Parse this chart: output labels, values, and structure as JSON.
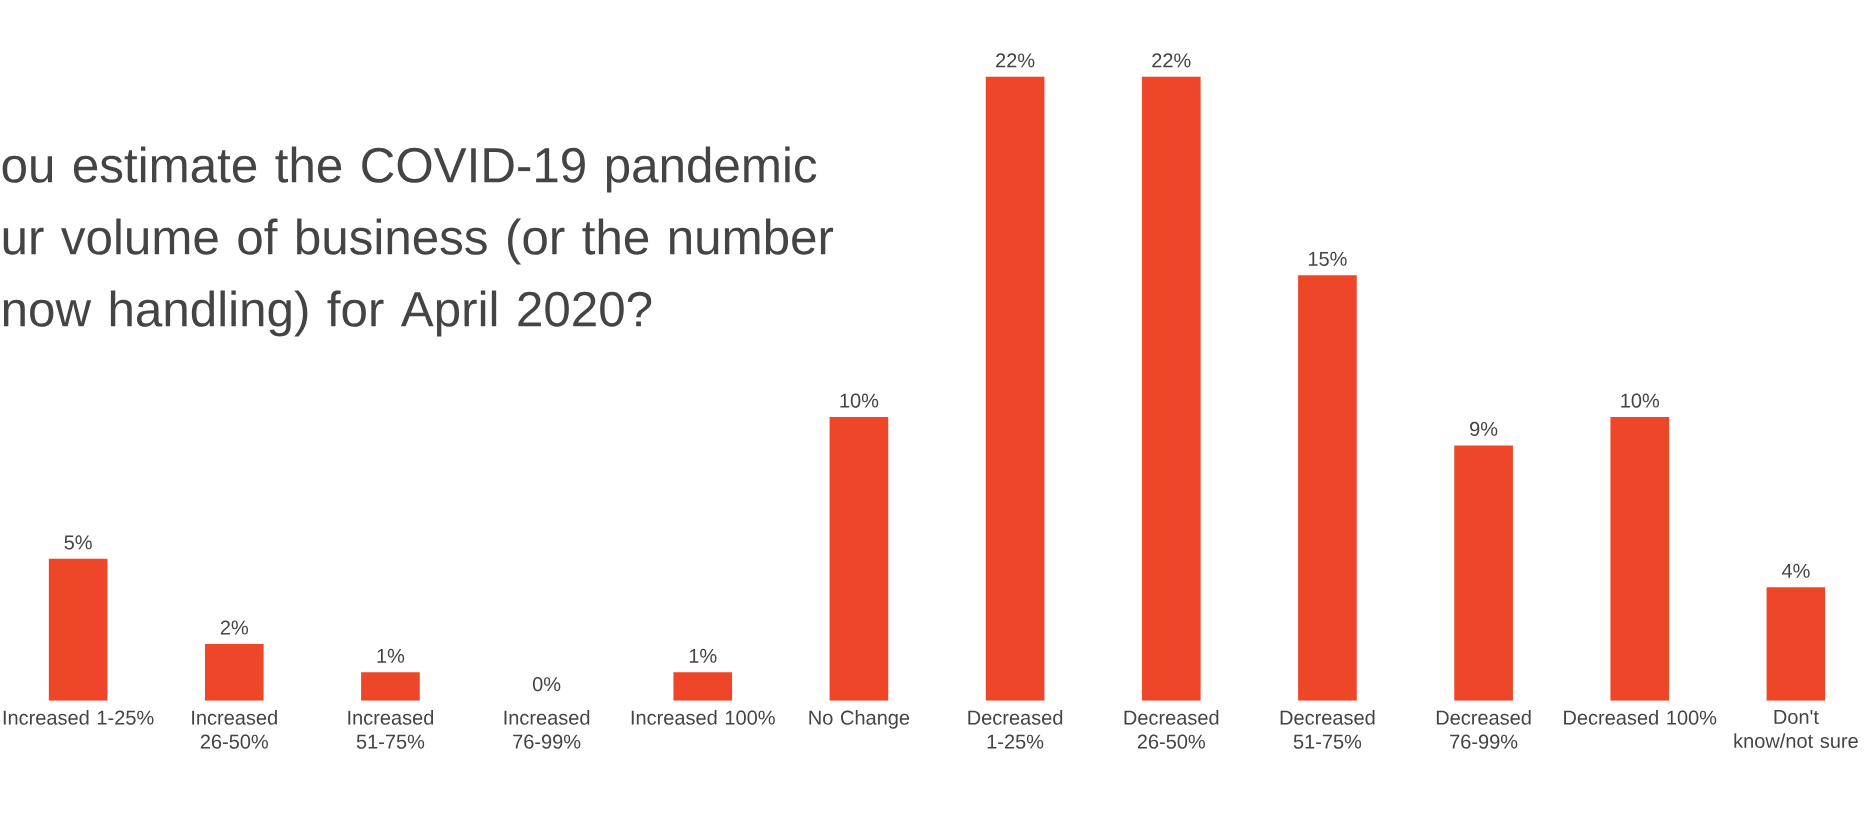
{
  "chart_data": {
    "type": "bar",
    "title": "ou estimate the COVID-19 pandemic ur volume of business (or the number now handling) for April 2020?",
    "categories": [
      "Increased 1-25%",
      "Increased 26-50%",
      "Increased 51-75%",
      "Increased 76-99%",
      "Increased 100%",
      "No Change",
      "Decreased 1-25%",
      "Decreased 26-50%",
      "Decreased 51-75%",
      "Decreased 76-99%",
      "Decreased 100%",
      "Don't know/not sure"
    ],
    "values": [
      5,
      2,
      1,
      0,
      1,
      10,
      22,
      22,
      15,
      9,
      10,
      4
    ],
    "value_labels": [
      "5%",
      "2%",
      "1%",
      "0%",
      "1%",
      "10%",
      "22%",
      "22%",
      "15%",
      "9%",
      "10%",
      "4%"
    ],
    "color": "#ee4628"
  }
}
